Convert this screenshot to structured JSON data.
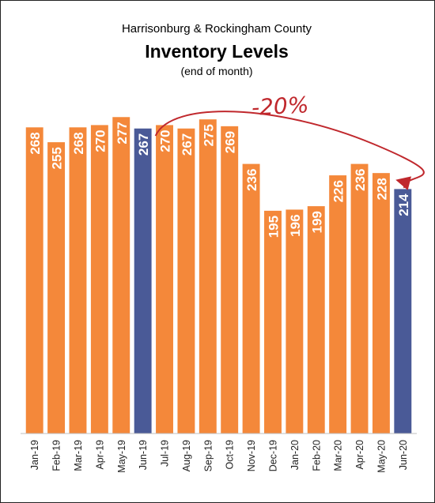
{
  "chart_data": {
    "type": "bar",
    "title": "Inventory Levels",
    "subtitle": "Harrisonburg & Rockingham County",
    "note": "(end of month)",
    "categories": [
      "Jan-19",
      "Feb-19",
      "Mar-19",
      "Apr-19",
      "May-19",
      "Jun-19",
      "Jul-19",
      "Aug-19",
      "Sep-19",
      "Oct-19",
      "Nov-19",
      "Dec-19",
      "Jan-20",
      "Feb-20",
      "Mar-20",
      "Apr-20",
      "May-20",
      "Jun-20"
    ],
    "values": [
      268,
      255,
      268,
      270,
      277,
      267,
      270,
      267,
      275,
      269,
      236,
      195,
      196,
      199,
      226,
      236,
      228,
      214
    ],
    "highlighted": [
      "Jun-19",
      "Jun-20"
    ],
    "ylim": [
      0,
      300
    ],
    "grid": false,
    "colors": {
      "default": "#f4883a",
      "highlight": "#4a5a97",
      "annotation": "#c0282d"
    },
    "annotation": {
      "text": "-20%",
      "from": "Jun-19",
      "to": "Jun-20"
    }
  }
}
